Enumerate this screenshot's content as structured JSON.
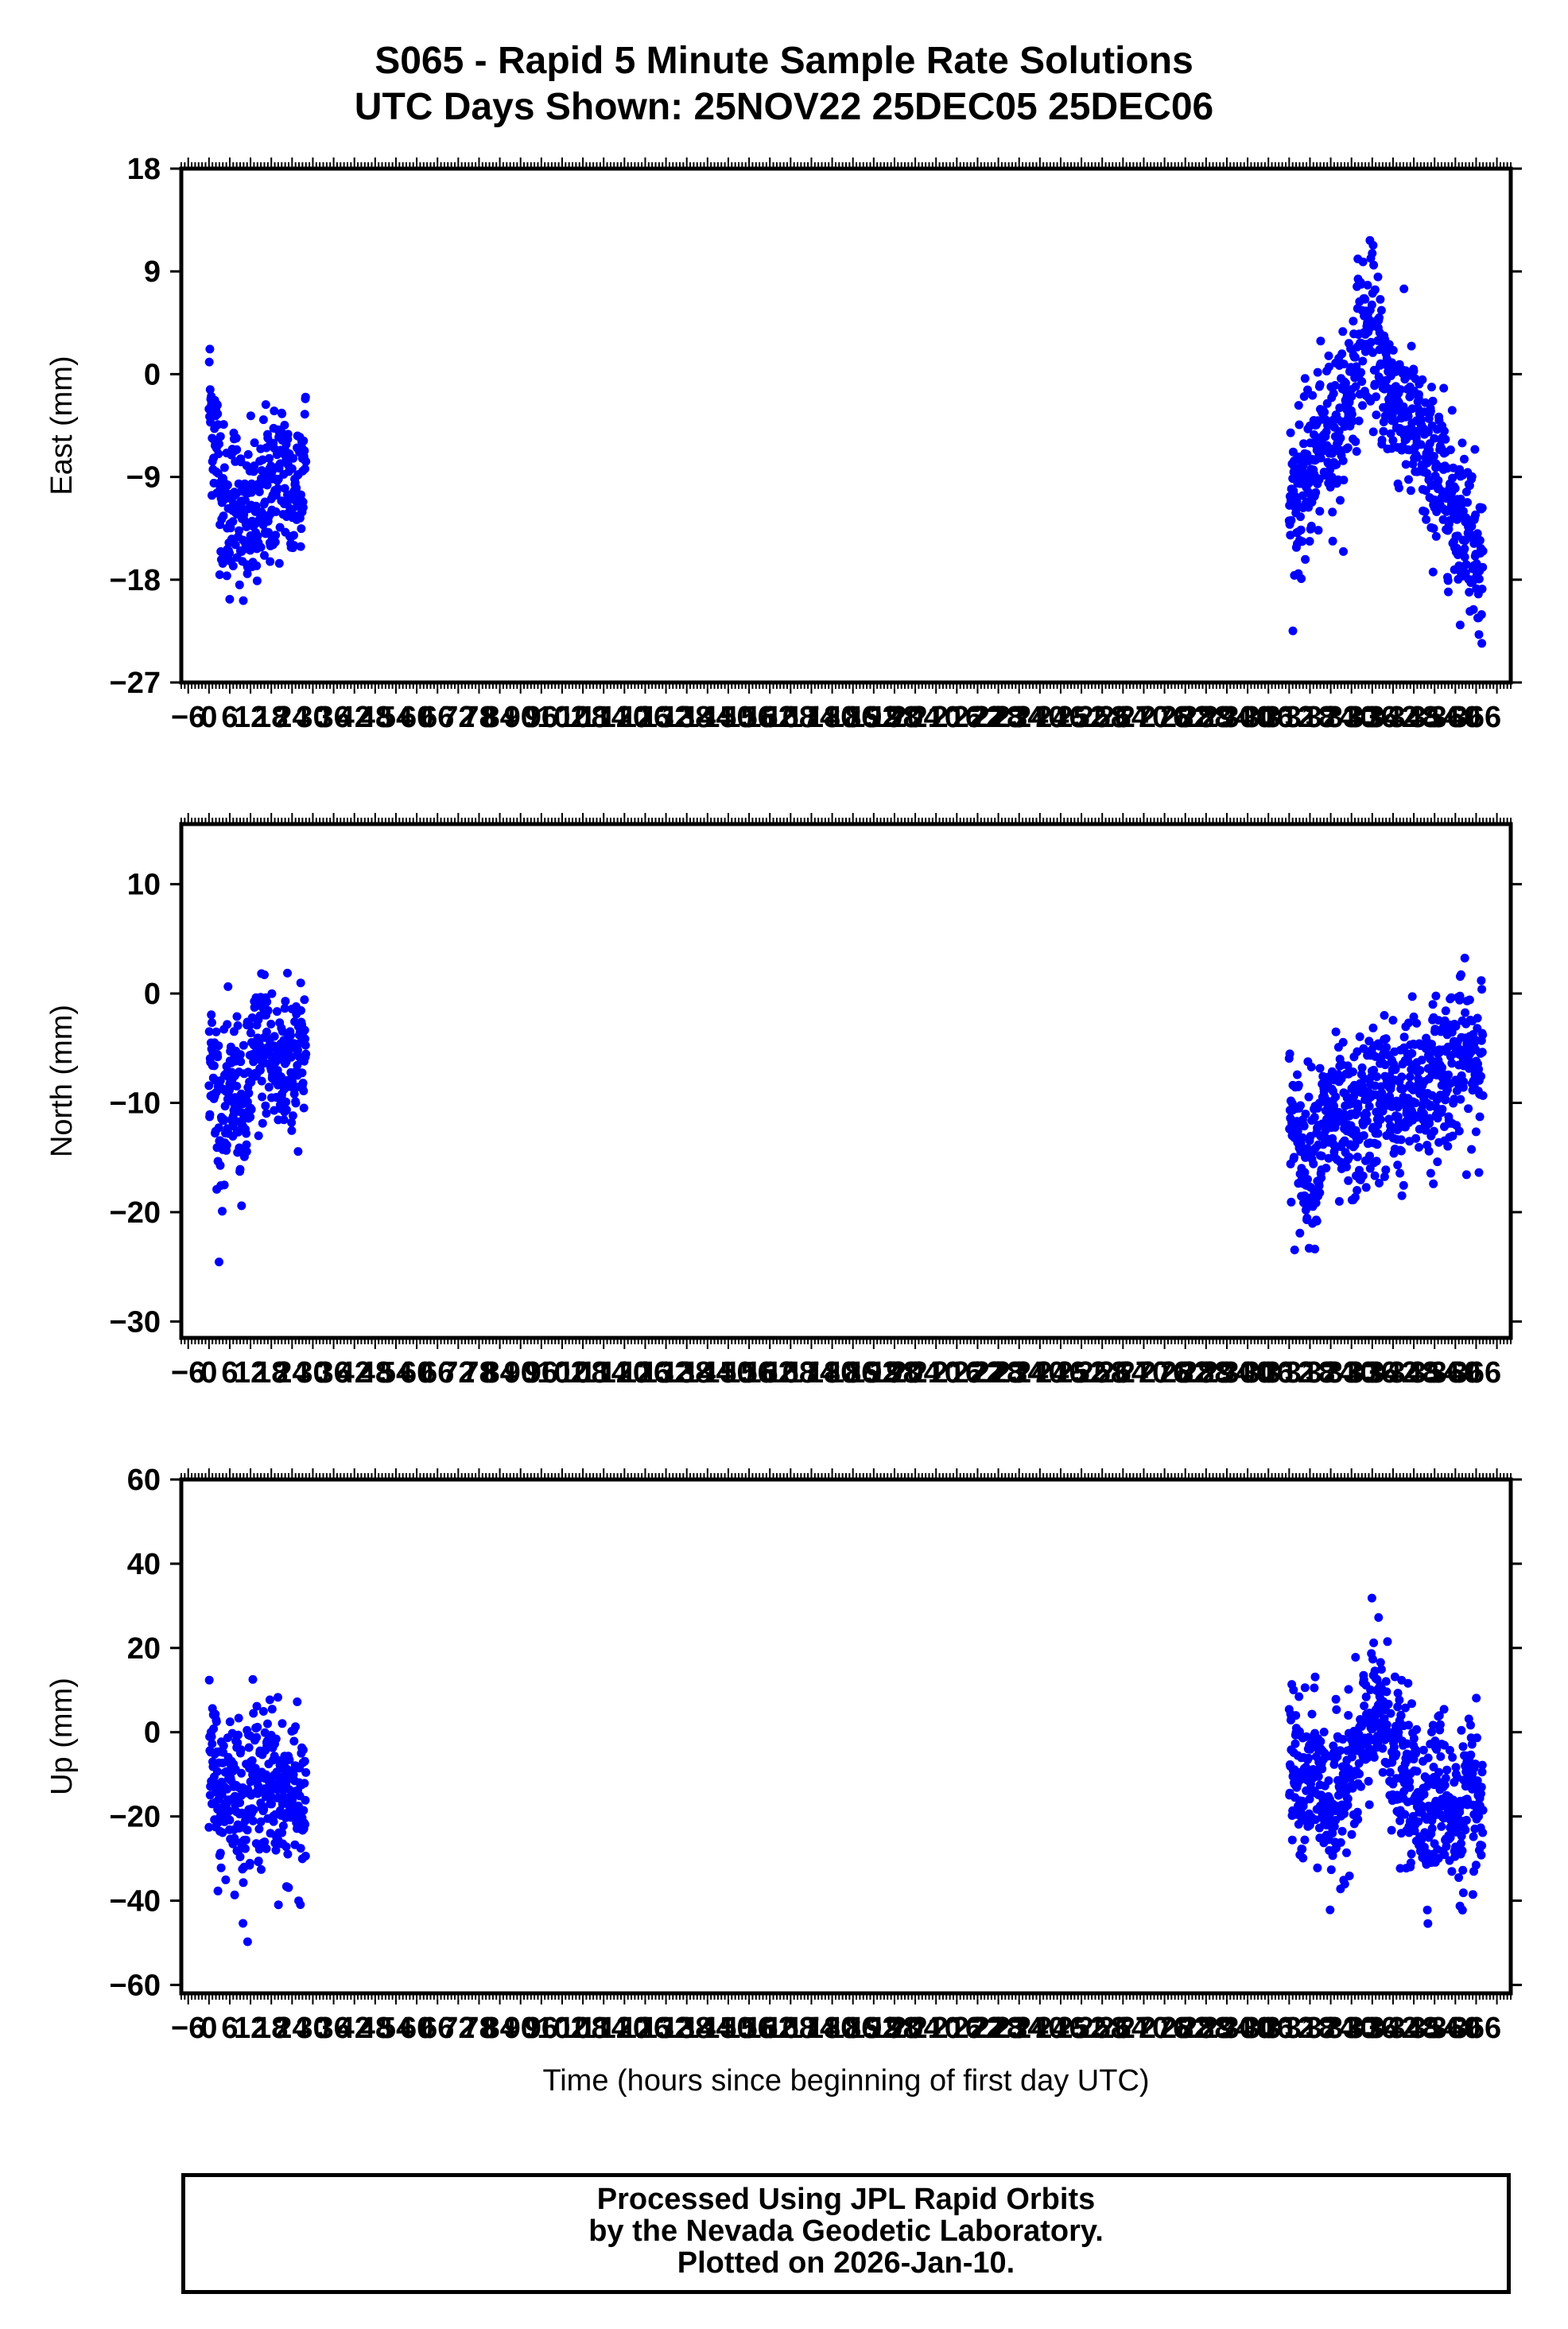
{
  "title_line1": "S065 - Rapid 5 Minute Sample Rate Solutions",
  "title_line2": "UTC Days Shown:  25NOV22 25DEC05 25DEC06",
  "footer": {
    "line1": "Processed Using JPL Rapid Orbits",
    "line2": "by the Nevada Geodetic Laboratory.",
    "line3": "Plotted on 2026-Jan-10."
  },
  "colors": {
    "points": "#0000ff",
    "frame": "#000000"
  },
  "chart_data": [
    {
      "type": "scatter",
      "ylabel": "East (mm)",
      "xlabel": "",
      "ylim": [
        -27,
        18
      ],
      "yticks": [
        18,
        9,
        0,
        -9,
        -18,
        -27
      ],
      "xlim": [
        -8,
        376
      ],
      "xticks_labels": [
        "-6",
        "0",
        "6",
        "12",
        "18",
        "24",
        "30",
        "36",
        "42",
        "48",
        "54",
        "60",
        "66",
        "72",
        "78",
        "84",
        "90",
        "96",
        "102",
        "108",
        "114",
        "120",
        "126",
        "132",
        "138",
        "144",
        "150",
        "156",
        "162",
        "168",
        "174",
        "180",
        "186",
        "192",
        "198",
        "204",
        "210",
        "216",
        "222",
        "228",
        "234",
        "240",
        "246",
        "252",
        "258",
        "264",
        "270",
        "276",
        "282",
        "288",
        "294",
        "300",
        "306",
        "312",
        "318",
        "324",
        "330",
        "336",
        "342",
        "348",
        "354",
        "360",
        "366"
      ],
      "series": [
        {
          "x": [
            0,
            2,
            4,
            6,
            8,
            10,
            12,
            14,
            16,
            18,
            20,
            22,
            24,
            26,
            28
          ],
          "y": [
            -2,
            -6,
            -11,
            -13,
            -9,
            -15,
            -12,
            -14,
            -10,
            -10,
            -9,
            -8,
            -12,
            -8,
            -7
          ]
        },
        {
          "x": [
            312,
            316,
            320,
            324,
            328,
            332,
            336,
            340,
            344,
            348,
            352,
            356,
            360,
            364,
            368
          ],
          "y": [
            -11,
            -10,
            -7,
            -5,
            -4,
            3,
            4,
            -1,
            -3,
            -5,
            -8,
            -9,
            -12,
            -13,
            -17
          ]
        }
      ]
    },
    {
      "type": "scatter",
      "ylabel": "North (mm)",
      "xlabel": "",
      "ylim": [
        -31.5,
        15.5
      ],
      "yticks": [
        10,
        0,
        -10,
        -20,
        -30
      ],
      "xlim": [
        -8,
        376
      ],
      "xticks_labels": [
        "-6",
        "0",
        "6",
        "12",
        "18",
        "24",
        "30",
        "36",
        "42",
        "48",
        "54",
        "60",
        "66",
        "72",
        "78",
        "84",
        "90",
        "96",
        "102",
        "108",
        "114",
        "120",
        "126",
        "132",
        "138",
        "144",
        "150",
        "156",
        "162",
        "168",
        "174",
        "180",
        "186",
        "192",
        "198",
        "204",
        "210",
        "216",
        "222",
        "228",
        "234",
        "240",
        "246",
        "252",
        "258",
        "264",
        "270",
        "276",
        "282",
        "288",
        "294",
        "300",
        "306",
        "312",
        "318",
        "324",
        "330",
        "336",
        "342",
        "348",
        "354",
        "360",
        "366"
      ],
      "series": [
        {
          "x": [
            0,
            2,
            4,
            6,
            8,
            10,
            12,
            14,
            16,
            18,
            20,
            22,
            24,
            26,
            28
          ],
          "y": [
            -6,
            -9,
            -12,
            -10,
            -8,
            -13,
            -7,
            -6,
            -4,
            -6,
            -8,
            -5,
            -7,
            -4,
            -5
          ]
        },
        {
          "x": [
            312,
            316,
            320,
            324,
            328,
            332,
            336,
            340,
            344,
            348,
            352,
            356,
            360,
            364,
            368
          ],
          "y": [
            -12,
            -15,
            -14,
            -11,
            -13,
            -12,
            -10,
            -9,
            -11,
            -8,
            -9,
            -7,
            -6,
            -6,
            -5
          ]
        }
      ]
    },
    {
      "type": "scatter",
      "ylabel": "Up (mm)",
      "xlabel": "Time (hours since beginning of first day UTC)",
      "ylim": [
        -62,
        60
      ],
      "yticks": [
        60,
        40,
        20,
        0,
        -20,
        -40,
        -60
      ],
      "xlim": [
        -8,
        376
      ],
      "xticks_labels": [
        "-6",
        "0",
        "6",
        "12",
        "18",
        "24",
        "30",
        "36",
        "42",
        "48",
        "54",
        "60",
        "66",
        "72",
        "78",
        "84",
        "90",
        "96",
        "102",
        "108",
        "114",
        "120",
        "126",
        "132",
        "138",
        "144",
        "150",
        "156",
        "162",
        "168",
        "174",
        "180",
        "186",
        "192",
        "198",
        "204",
        "210",
        "216",
        "222",
        "228",
        "234",
        "240",
        "246",
        "252",
        "258",
        "264",
        "270",
        "276",
        "282",
        "288",
        "294",
        "300",
        "306",
        "312",
        "318",
        "324",
        "330",
        "336",
        "342",
        "348",
        "354",
        "360",
        "366"
      ],
      "series": [
        {
          "x": [
            0,
            2,
            4,
            6,
            8,
            10,
            12,
            14,
            16,
            18,
            20,
            22,
            24,
            26,
            28
          ],
          "y": [
            -8,
            -12,
            -18,
            -10,
            -14,
            -20,
            -12,
            -10,
            -16,
            -8,
            -14,
            -18,
            -12,
            -20,
            -16
          ]
        },
        {
          "x": [
            312,
            316,
            320,
            324,
            328,
            332,
            336,
            340,
            344,
            348,
            352,
            356,
            360,
            364,
            368
          ],
          "y": [
            -5,
            -15,
            -10,
            -20,
            -12,
            -8,
            5,
            2,
            -10,
            -14,
            -18,
            -12,
            -22,
            -16,
            -20
          ]
        }
      ]
    }
  ]
}
